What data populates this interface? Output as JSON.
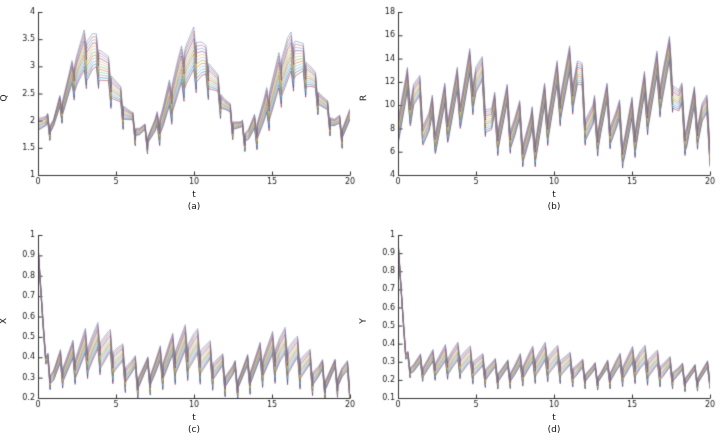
{
  "figure": {
    "background": "#ffffff",
    "layout": "2x2-grid-of-line-plots",
    "grid": false,
    "legend": "none"
  },
  "palette": [
    "#A2142F",
    "#0072BD",
    "#8A8AA0",
    "#4DBEEE",
    "#D95319",
    "#77AC30",
    "#9FB3C8",
    "#EDB120",
    "#7E2F8E",
    "#6E8FB5",
    "#C0504D",
    "#5B7DB1"
  ],
  "chart_data": [
    {
      "panel": "a",
      "type": "line",
      "title": "",
      "xlabel": "t",
      "ylabel": "Q",
      "caption": "(a)",
      "xlim": [
        0,
        20
      ],
      "ylim": [
        1,
        4
      ],
      "xticks": [
        "0",
        "5",
        "10",
        "15",
        "20"
      ],
      "yticks": [
        "1",
        "1.5",
        "2",
        "2.5",
        "3",
        "3.5",
        "4"
      ],
      "num_series": 12,
      "mean": {
        "t0": 0,
        "dt": 0.5,
        "values": [
          2.05,
          1.92,
          2.0,
          2.3,
          2.65,
          3.0,
          3.2,
          3.25,
          3.1,
          2.85,
          2.55,
          2.25,
          2.0,
          1.82,
          1.75,
          1.85,
          2.1,
          2.45,
          2.8,
          3.1,
          3.22,
          3.12,
          2.9,
          2.6,
          2.3,
          2.02,
          1.85,
          1.78,
          1.9,
          2.15,
          2.5,
          2.85,
          3.1,
          3.22,
          3.05,
          2.8,
          2.5,
          2.2,
          1.98,
          1.88,
          2.05
        ]
      },
      "spread": {
        "t0": 0,
        "dt": 1,
        "values": [
          0.22,
          0.12,
          0.35,
          0.75,
          0.55,
          0.35,
          0.14,
          0.1,
          0.35,
          0.65,
          0.78,
          0.45,
          0.18,
          0.1,
          0.28,
          0.55,
          0.78,
          0.5,
          0.22,
          0.12,
          0.2
        ]
      },
      "teeth": {
        "period": 0.78,
        "amp": 0.12,
        "rise": 0.8,
        "spike": 2.6,
        "warmup": 0
      }
    },
    {
      "panel": "b",
      "type": "line",
      "title": "",
      "xlabel": "t",
      "ylabel": "R",
      "caption": "(b)",
      "xlim": [
        0,
        20
      ],
      "ylim": [
        4,
        18
      ],
      "xticks": [
        "0",
        "5",
        "10",
        "15",
        "20"
      ],
      "yticks": [
        "4",
        "6",
        "8",
        "10",
        "12",
        "14",
        "16",
        "18"
      ],
      "num_series": 12,
      "mean": {
        "t0": 0,
        "dt": 0.5,
        "values": [
          9.5,
          10.2,
          11.5,
          9.5,
          8.0,
          8.6,
          9.2,
          10.0,
          10.8,
          11.8,
          12.8,
          11.0,
          8.2,
          8.8,
          9.2,
          8.2,
          7.6,
          7.0,
          8.2,
          9.4,
          10.6,
          11.6,
          12.2,
          12.8,
          9.6,
          8.0,
          9.0,
          9.4,
          8.2,
          7.4,
          8.0,
          9.4,
          10.6,
          11.6,
          12.6,
          13.2,
          9.8,
          8.4,
          9.0,
          9.4,
          7.6
        ]
      },
      "spread": {
        "t0": 0,
        "dt": 1,
        "values": [
          2.2,
          1.8,
          1.6,
          1.8,
          2.0,
          2.2,
          1.8,
          1.6,
          1.5,
          1.8,
          2.0,
          2.2,
          1.8,
          1.6,
          1.5,
          1.8,
          2.0,
          2.2,
          1.8,
          1.6,
          1.5
        ]
      },
      "teeth": {
        "period": 0.8,
        "amp": 1.8,
        "rise": 0.75,
        "spike": 1.2,
        "warmup": 0
      }
    },
    {
      "panel": "c",
      "type": "line",
      "title": "",
      "xlabel": "t",
      "ylabel": "X",
      "caption": "(c)",
      "xlim": [
        0,
        20
      ],
      "ylim": [
        0.2,
        1
      ],
      "xticks": [
        "0",
        "5",
        "10",
        "15",
        "20"
      ],
      "yticks": [
        "0.2",
        "0.3",
        "0.4",
        "0.5",
        "0.6",
        "0.7",
        "0.8",
        "0.9",
        "1"
      ],
      "num_series": 12,
      "mean": {
        "t0": 0,
        "dt": 0.5,
        "values": [
          0.95,
          0.36,
          0.33,
          0.36,
          0.38,
          0.4,
          0.43,
          0.45,
          0.46,
          0.44,
          0.41,
          0.37,
          0.34,
          0.32,
          0.33,
          0.35,
          0.38,
          0.41,
          0.43,
          0.45,
          0.44,
          0.42,
          0.39,
          0.36,
          0.33,
          0.31,
          0.32,
          0.34,
          0.37,
          0.4,
          0.42,
          0.44,
          0.43,
          0.41,
          0.38,
          0.35,
          0.32,
          0.31,
          0.32,
          0.33,
          0.3
        ]
      },
      "spread": {
        "t0": 0,
        "dt": 1,
        "values": [
          0.02,
          0.05,
          0.08,
          0.12,
          0.13,
          0.1,
          0.06,
          0.04,
          0.08,
          0.12,
          0.13,
          0.09,
          0.05,
          0.04,
          0.07,
          0.11,
          0.13,
          0.09,
          0.05,
          0.04,
          0.05
        ]
      },
      "teeth": {
        "period": 0.8,
        "amp": 0.05,
        "rise": 0.8,
        "spike": 2.0,
        "warmup": 0.6
      }
    },
    {
      "panel": "d",
      "type": "line",
      "title": "",
      "xlabel": "t",
      "ylabel": "Y",
      "caption": "(d)",
      "xlim": [
        0,
        20
      ],
      "ylim": [
        0.1,
        1
      ],
      "xticks": [
        "0",
        "5",
        "10",
        "15",
        "20"
      ],
      "yticks": [
        "0.1",
        "0.2",
        "0.3",
        "0.4",
        "0.5",
        "0.6",
        "0.7",
        "0.8",
        "0.9",
        "1"
      ],
      "num_series": 12,
      "mean": {
        "t0": 0,
        "dt": 0.5,
        "values": [
          0.97,
          0.31,
          0.28,
          0.28,
          0.29,
          0.3,
          0.31,
          0.32,
          0.32,
          0.31,
          0.29,
          0.27,
          0.26,
          0.25,
          0.25,
          0.26,
          0.28,
          0.3,
          0.31,
          0.32,
          0.31,
          0.3,
          0.28,
          0.26,
          0.25,
          0.24,
          0.24,
          0.25,
          0.27,
          0.28,
          0.3,
          0.31,
          0.3,
          0.29,
          0.27,
          0.26,
          0.24,
          0.23,
          0.23,
          0.24,
          0.25
        ]
      },
      "spread": {
        "t0": 0,
        "dt": 1,
        "values": [
          0.02,
          0.04,
          0.06,
          0.09,
          0.1,
          0.08,
          0.05,
          0.04,
          0.07,
          0.1,
          0.1,
          0.07,
          0.04,
          0.03,
          0.06,
          0.09,
          0.1,
          0.07,
          0.04,
          0.03,
          0.04
        ]
      },
      "teeth": {
        "period": 0.8,
        "amp": 0.04,
        "rise": 0.8,
        "spike": 2.0,
        "warmup": 0.6
      }
    }
  ]
}
